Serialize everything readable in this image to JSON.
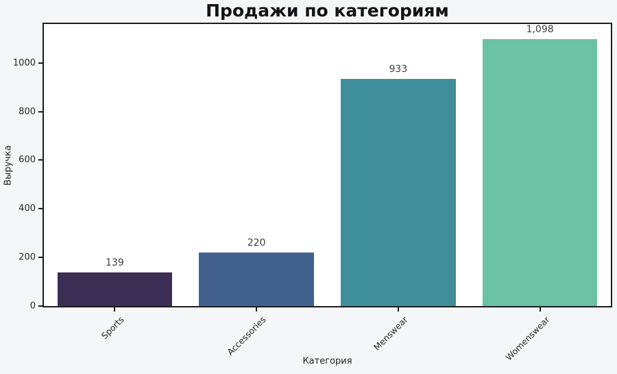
{
  "title": "Продажи по категориям",
  "chart_data": {
    "type": "bar",
    "title": "Продажи по категориям",
    "xlabel": "Категория",
    "ylabel": "Выручка",
    "categories": [
      "Sports",
      "Accessories",
      "Menswear",
      "Womenswear"
    ],
    "values": [
      139,
      220,
      933,
      1098
    ],
    "value_labels": [
      "139",
      "220",
      "933",
      "1,098"
    ],
    "bar_colors": [
      "#3a2e55",
      "#42618e",
      "#3f8e9b",
      "#6cc2a4"
    ],
    "yticks": [
      0,
      200,
      400,
      600,
      800,
      1000
    ],
    "ylim": [
      0,
      1160
    ],
    "grid": false,
    "legend_position": "none"
  },
  "colors": {
    "page_background": "#f5f6f8",
    "plot_background": "#ffffff",
    "axis_frame": "#1c1c1c",
    "tick_label": "#262626",
    "value_label": "#3d3d3d",
    "title_text": "#141414"
  }
}
